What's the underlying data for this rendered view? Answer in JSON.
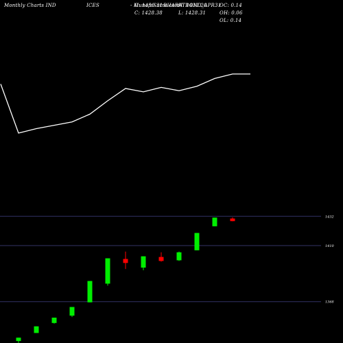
{
  "header": {
    "left_title": "Monthly Charts IND",
    "left_title_cont": "ICES",
    "center_title": "- MunafaSutra.com",
    "symbol": "BHARATBOND_APR31",
    "open": "O: 1430.31",
    "high": "H: 1431.20",
    "oc": "OC: 0.14",
    "close": "C: 1428.38",
    "low": "L: 1428.31",
    "oh": "OH: 0.06",
    "ol": "OL: 0.14"
  },
  "colors": {
    "background": "#000000",
    "up_candle": "#00ee00",
    "down_candle": "#ff0000",
    "line": "#ffffff",
    "hline": "#333366"
  },
  "chart_data": {
    "type": "candlestick",
    "price_levels": [
      {
        "label": "1432",
        "value": 1432
      },
      {
        "label": "1410",
        "value": 1410
      },
      {
        "label": "1368",
        "value": 1368
      }
    ],
    "ylim": [
      1337,
      1445
    ],
    "candles": [
      {
        "open": 1338.5,
        "high": 1341.0,
        "low": 1336.5,
        "close": 1341.0,
        "dir": "up"
      },
      {
        "open": 1344.5,
        "high": 1349.5,
        "low": 1344.5,
        "close": 1349.5,
        "dir": "up"
      },
      {
        "open": 1352.0,
        "high": 1356.0,
        "low": 1351.5,
        "close": 1356.0,
        "dir": "up"
      },
      {
        "open": 1357.5,
        "high": 1364.0,
        "low": 1356.5,
        "close": 1364.0,
        "dir": "up"
      },
      {
        "open": 1367.5,
        "high": 1383.5,
        "low": 1367.5,
        "close": 1383.5,
        "dir": "up"
      },
      {
        "open": 1381.5,
        "high": 1400.5,
        "low": 1380.0,
        "close": 1400.5,
        "dir": "up"
      },
      {
        "open": 1400.0,
        "high": 1405.5,
        "low": 1392.5,
        "close": 1397.0,
        "dir": "down"
      },
      {
        "open": 1393.5,
        "high": 1402.0,
        "low": 1391.5,
        "close": 1402.0,
        "dir": "up"
      },
      {
        "open": 1401.5,
        "high": 1405.0,
        "low": 1398.0,
        "close": 1398.5,
        "dir": "down"
      },
      {
        "open": 1399.0,
        "high": 1405.5,
        "low": 1398.5,
        "close": 1405.0,
        "dir": "up"
      },
      {
        "open": 1406.5,
        "high": 1419.5,
        "low": 1406.5,
        "close": 1419.5,
        "dir": "up"
      },
      {
        "open": 1424.5,
        "high": 1431.0,
        "low": 1424.5,
        "close": 1431.0,
        "dir": "up"
      },
      {
        "open": 1430.31,
        "high": 1431.2,
        "low": 1428.31,
        "close": 1428.38,
        "dir": "down"
      }
    ],
    "overlay_line": [
      1395,
      1373,
      1375,
      1376.5,
      1378,
      1381.5,
      1387.5,
      1393,
      1391.5,
      1393.5,
      1392,
      1394,
      1397.5,
      1399.5,
      1399.5
    ]
  }
}
